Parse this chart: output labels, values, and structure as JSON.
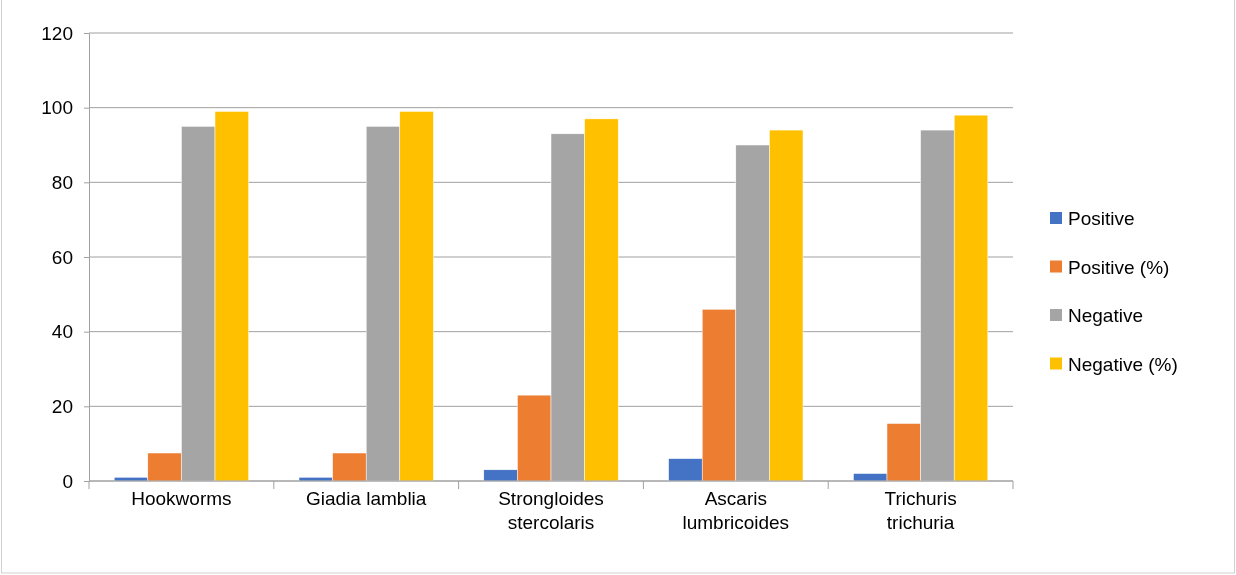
{
  "chart_data": {
    "type": "bar",
    "categories": [
      "Hookworms",
      "Giadia lamblia",
      "Strongloides stercolaris",
      "Ascaris lumbricoides",
      "Trichuris trichuria"
    ],
    "series": [
      {
        "name": "Positive",
        "color": "#4472c4",
        "values": [
          1,
          1,
          3,
          6,
          2
        ]
      },
      {
        "name": "Positive (%)",
        "color": "#ed7d31",
        "values": [
          7.5,
          7.5,
          23,
          46,
          15.4
        ]
      },
      {
        "name": "Negative",
        "color": "#a5a5a5",
        "values": [
          95,
          95,
          93,
          90,
          94
        ]
      },
      {
        "name": "Negative (%)",
        "color": "#ffc000",
        "values": [
          99,
          99,
          97,
          94,
          98
        ]
      }
    ],
    "ylim": [
      0,
      120
    ],
    "yticks": [
      0,
      20,
      40,
      60,
      80,
      100,
      120
    ],
    "grid": "y",
    "legend": "right"
  }
}
